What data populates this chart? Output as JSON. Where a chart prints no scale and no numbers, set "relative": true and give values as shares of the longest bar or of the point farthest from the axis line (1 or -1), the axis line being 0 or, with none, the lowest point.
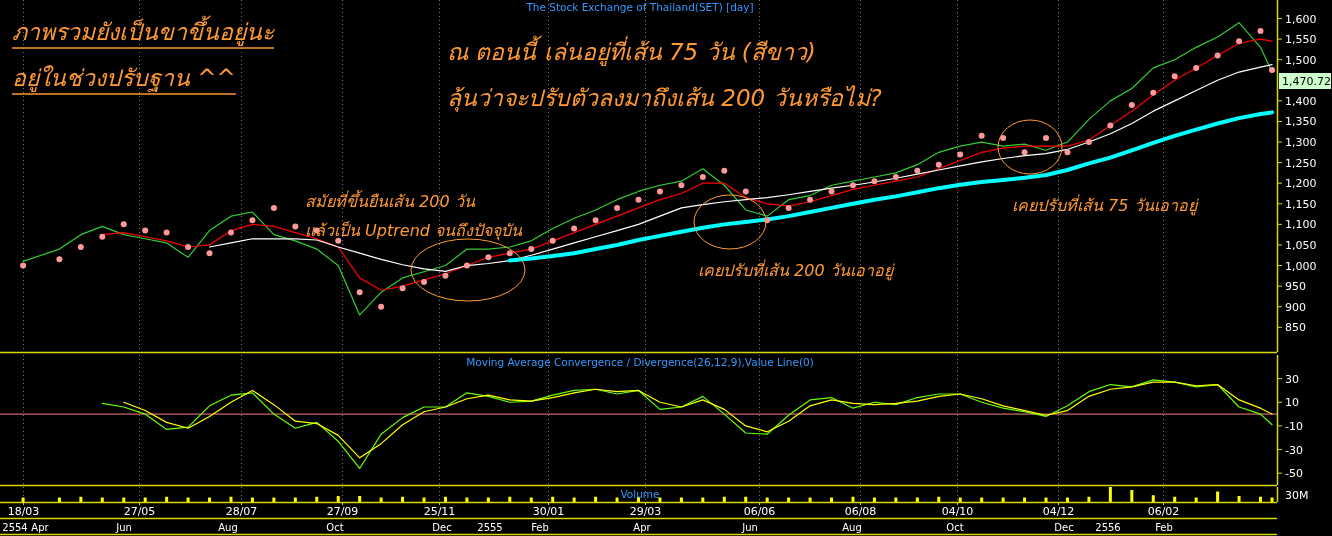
{
  "chart_data": [
    {
      "type": "line",
      "title": "The Stock Exchange of Thailand(SET) [day]",
      "grid": "x",
      "tick_labels": "y",
      "x": [
        "2011-03-18",
        "2011-04-09",
        "2011-04-22",
        "2011-05-05",
        "2011-05-18",
        "2011-05-31",
        "2011-06-13",
        "2011-06-26",
        "2011-07-09",
        "2011-07-22",
        "2011-08-04",
        "2011-08-17",
        "2011-08-30",
        "2011-09-12",
        "2011-09-25",
        "2011-10-08",
        "2011-10-21",
        "2011-11-03",
        "2011-11-16",
        "2011-11-29",
        "2011-12-12",
        "2011-12-25",
        "2012-01-07",
        "2012-01-20",
        "2012-02-02",
        "2012-02-15",
        "2012-02-28",
        "2012-03-12",
        "2012-03-25",
        "2012-04-07",
        "2012-04-20",
        "2012-05-03",
        "2012-05-16",
        "2012-05-29",
        "2012-06-11",
        "2012-06-24",
        "2012-07-07",
        "2012-07-20",
        "2012-08-02",
        "2012-08-15",
        "2012-08-28",
        "2012-09-10",
        "2012-09-23",
        "2012-10-06",
        "2012-10-19",
        "2012-11-01",
        "2012-11-14",
        "2012-11-27",
        "2012-12-10",
        "2012-12-23",
        "2013-01-05",
        "2013-01-18",
        "2013-01-31",
        "2013-02-13",
        "2013-02-26",
        "2013-03-11",
        "2013-03-24",
        "2013-04-06",
        "2013-04-13"
      ],
      "xlim": [
        "2011-03-04",
        "2013-04-16"
      ],
      "xticks": [
        {
          "value": "2011-03-18",
          "label": null
        },
        {
          "value": "2011-05-27",
          "label": null
        },
        {
          "value": "2011-07-28",
          "label": null
        },
        {
          "value": "2011-09-27",
          "label": null
        },
        {
          "value": "2011-11-25",
          "label": null
        },
        {
          "value": "2012-01-30",
          "label": null
        },
        {
          "value": "2012-03-29",
          "label": null
        },
        {
          "value": "2012-06-06",
          "label": null
        },
        {
          "value": "2012-08-06",
          "label": null
        },
        {
          "value": "2012-10-04",
          "label": null
        },
        {
          "value": "2012-12-04",
          "label": null
        },
        {
          "value": "2013-02-06",
          "label": null
        }
      ],
      "ylim": [
        790,
        1645
      ],
      "yticks": [
        {
          "value": 1600,
          "label": "1,600"
        },
        {
          "value": 1550,
          "label": "1,550"
        },
        {
          "value": 1500,
          "label": "1,500"
        },
        {
          "value": 1400,
          "label": "1,400"
        },
        {
          "value": 1350,
          "label": "1,350"
        },
        {
          "value": 1300,
          "label": "1,300"
        },
        {
          "value": 1250,
          "label": "1,250"
        },
        {
          "value": 1200,
          "label": "1,200"
        },
        {
          "value": 1150,
          "label": "1,150"
        },
        {
          "value": 1100,
          "label": "1,100"
        },
        {
          "value": 1050,
          "label": "1,050"
        },
        {
          "value": 1000,
          "label": "1,000"
        },
        950,
        900,
        850
      ],
      "series": [
        {
          "color": "#33cc33",
          "values": [
            1010,
            1040,
            1075,
            1095,
            1075,
            1065,
            1055,
            1020,
            1085,
            1120,
            1130,
            1075,
            1060,
            1040,
            1000,
            880,
            935,
            970,
            985,
            1000,
            1040,
            1040,
            1045,
            1060,
            1090,
            1115,
            1135,
            1160,
            1180,
            1195,
            1205,
            1235,
            1195,
            1135,
            1120,
            1160,
            1170,
            1195,
            1205,
            1215,
            1225,
            1245,
            1275,
            1290,
            1300,
            1290,
            1295,
            1280,
            1300,
            1355,
            1400,
            1430,
            1480,
            1500,
            1530,
            1555,
            1590,
            1530,
            1470
          ]
        },
        {
          "color": "#ff0000",
          "values": [
            null,
            null,
            null,
            1075,
            1080,
            1070,
            1060,
            1045,
            1050,
            1085,
            1100,
            1095,
            1080,
            1065,
            1045,
            970,
            940,
            950,
            965,
            980,
            1000,
            1020,
            1030,
            1040,
            1060,
            1080,
            1100,
            1120,
            1140,
            1160,
            1175,
            1200,
            1200,
            1165,
            1150,
            1145,
            1155,
            1170,
            1185,
            1195,
            1205,
            1215,
            1235,
            1255,
            1275,
            1285,
            1290,
            1290,
            1290,
            1305,
            1340,
            1375,
            1415,
            1450,
            1480,
            1510,
            1540,
            1550,
            1545
          ]
        },
        {
          "color": "#ffffff",
          "values": [
            null,
            null,
            null,
            null,
            null,
            null,
            null,
            null,
            1045,
            1055,
            1065,
            1065,
            1065,
            1062,
            1045,
            1030,
            1015,
            1002,
            992,
            986,
            1000,
            1005,
            1012,
            1025,
            1040,
            1055,
            1070,
            1085,
            1100,
            1120,
            1140,
            1148,
            1155,
            1160,
            1165,
            1172,
            1180,
            1188,
            1195,
            1203,
            1212,
            1222,
            1232,
            1242,
            1252,
            1260,
            1267,
            1272,
            1282,
            1300,
            1320,
            1345,
            1375,
            1400,
            1425,
            1450,
            1470,
            1482,
            1488
          ]
        },
        {
          "color": "#00ffff",
          "values": [
            null,
            null,
            null,
            null,
            null,
            null,
            null,
            null,
            null,
            null,
            null,
            null,
            null,
            null,
            null,
            null,
            null,
            null,
            null,
            null,
            null,
            null,
            1012,
            1017,
            1023,
            1030,
            1040,
            1050,
            1062,
            1072,
            1082,
            1092,
            1100,
            1106,
            1112,
            1120,
            1130,
            1140,
            1150,
            1160,
            1168,
            1178,
            1188,
            1196,
            1203,
            1208,
            1213,
            1220,
            1232,
            1248,
            1262,
            1280,
            1298,
            1315,
            1330,
            1345,
            1358,
            1368,
            1372
          ]
        },
        {
          "type": "scatter",
          "marker": "circle",
          "color": "#ff9999",
          "values": [
            1000,
            1015,
            1045,
            1070,
            1100,
            1085,
            1080,
            1045,
            1030,
            1080,
            1110,
            1140,
            1095,
            1085,
            1060,
            935,
            900,
            945,
            960,
            975,
            1000,
            1020,
            1030,
            1040,
            1060,
            1090,
            1110,
            1140,
            1160,
            1180,
            1195,
            1215,
            1230,
            1180,
            1110,
            1140,
            1160,
            1180,
            1195,
            1205,
            1215,
            1230,
            1245,
            1270,
            1315,
            1310,
            1275,
            1310,
            1275,
            1300,
            1340,
            1390,
            1420,
            1460,
            1480,
            1510,
            1545,
            1570,
            1475
          ]
        }
      ],
      "annotations": [
        "ภาพรวมยังเป็นขาขึ้นอยู่นะ",
        "อยู่ในช่วงปรับฐาน ^^",
        "ณ ตอนนี้ เล่นอยู่ที่เส้น 75 วัน (สีขาว)",
        "ลุ้นว่าจะปรับตัวลงมาถึงเส้น 200 วันหรือไม่?",
        "สมัยที่ขึ้นยืนเส้น 200 วัน",
        "แล้วเป็น Uptrend จนถึงปัจจุบัน",
        "เคยปรับที่เส้น 200 วันเอาอยู่",
        "เคยปรับที่เส้น 75 วันเอาอยู่",
        "1,470.72"
      ]
    },
    {
      "type": "line",
      "title": "Moving Average Convergence / Divergence(26,12,9),Value Line(0)",
      "grid": "x",
      "tick_labels": "y",
      "x": [
        "2011-05-05",
        "2011-05-18",
        "2011-05-31",
        "2011-06-13",
        "2011-06-26",
        "2011-07-09",
        "2011-07-22",
        "2011-08-04",
        "2011-08-17",
        "2011-08-30",
        "2011-09-12",
        "2011-09-25",
        "2011-10-08",
        "2011-10-21",
        "2011-11-03",
        "2011-11-16",
        "2011-11-29",
        "2011-12-12",
        "2011-12-25",
        "2012-01-07",
        "2012-01-20",
        "2012-02-02",
        "2012-02-15",
        "2012-02-28",
        "2012-03-12",
        "2012-03-25",
        "2012-04-07",
        "2012-04-20",
        "2012-05-03",
        "2012-05-16",
        "2012-05-29",
        "2012-06-11",
        "2012-06-24",
        "2012-07-07",
        "2012-07-20",
        "2012-08-02",
        "2012-08-15",
        "2012-08-28",
        "2012-09-10",
        "2012-09-23",
        "2012-10-06",
        "2012-10-19",
        "2012-11-01",
        "2012-11-14",
        "2012-11-27",
        "2012-12-10",
        "2012-12-23",
        "2013-01-05",
        "2013-01-18",
        "2013-01-31",
        "2013-02-13",
        "2013-02-26",
        "2013-03-11",
        "2013-03-24",
        "2013-04-06",
        "2013-04-13"
      ],
      "xlim": [
        "2011-03-04",
        "2013-04-16"
      ],
      "xticks": [
        {
          "value": "2011-03-18",
          "label": null
        },
        {
          "value": "2011-05-27",
          "label": null
        },
        {
          "value": "2011-07-28",
          "label": null
        },
        {
          "value": "2011-09-27",
          "label": null
        },
        {
          "value": "2011-11-25",
          "label": null
        },
        {
          "value": "2012-01-30",
          "label": null
        },
        {
          "value": "2012-03-29",
          "label": null
        },
        {
          "value": "2012-06-06",
          "label": null
        },
        {
          "value": "2012-08-06",
          "label": null
        },
        {
          "value": "2012-10-04",
          "label": null
        },
        {
          "value": "2012-12-04",
          "label": null
        },
        {
          "value": "2013-02-06",
          "label": null
        }
      ],
      "ylim": [
        -60,
        50
      ],
      "yticks": [
        30,
        10,
        -10,
        -30,
        -50
      ],
      "ref_lines": [
        {
          "axis": "y",
          "value": 0,
          "color": "#ff8080"
        }
      ],
      "series": [
        {
          "color": "#66ff00",
          "values": [
            9,
            6,
            0,
            -13,
            -11,
            7,
            16,
            18,
            0,
            -12,
            -7,
            -23,
            -46,
            -17,
            -3,
            6,
            6,
            18,
            15,
            10,
            11,
            16,
            20,
            21,
            17,
            20,
            4,
            6,
            15,
            0,
            -16,
            -17,
            -1,
            12,
            14,
            5,
            10,
            8,
            14,
            17,
            17,
            10,
            5,
            2,
            -2,
            7,
            19,
            25,
            23,
            29,
            27,
            23,
            25,
            6,
            0,
            -9
          ]
        },
        {
          "color": "#ffff00",
          "values": [
            null,
            10,
            3,
            -7,
            -12,
            -2,
            10,
            20,
            8,
            -6,
            -8,
            -18,
            -37,
            -25,
            -9,
            2,
            6,
            13,
            16,
            12,
            11,
            14,
            18,
            21,
            19,
            20,
            10,
            6,
            12,
            4,
            -10,
            -15,
            -6,
            7,
            12,
            9,
            8,
            9,
            11,
            15,
            17,
            13,
            7,
            3,
            -1,
            3,
            15,
            21,
            23,
            27,
            27,
            24,
            25,
            12,
            5,
            0
          ]
        }
      ]
    },
    {
      "type": "bar",
      "title": "Volume",
      "relative": true,
      "grid": "x",
      "tick_labels": "x",
      "x": [
        "2011-03-18",
        "2011-04-09",
        "2011-04-22",
        "2011-05-05",
        "2011-05-18",
        "2011-05-31",
        "2011-06-13",
        "2011-06-26",
        "2011-07-09",
        "2011-07-22",
        "2011-08-04",
        "2011-08-17",
        "2011-08-30",
        "2011-09-12",
        "2011-09-25",
        "2011-10-08",
        "2011-10-21",
        "2011-11-03",
        "2011-11-16",
        "2011-11-29",
        "2011-12-12",
        "2011-12-25",
        "2012-01-07",
        "2012-01-20",
        "2012-02-02",
        "2012-02-15",
        "2012-02-28",
        "2012-03-12",
        "2012-03-25",
        "2012-04-07",
        "2012-04-20",
        "2012-05-03",
        "2012-05-16",
        "2012-05-29",
        "2012-06-11",
        "2012-06-24",
        "2012-07-07",
        "2012-07-20",
        "2012-08-02",
        "2012-08-15",
        "2012-08-28",
        "2012-09-10",
        "2012-09-23",
        "2012-10-06",
        "2012-10-19",
        "2012-11-01",
        "2012-11-14",
        "2012-11-27",
        "2012-12-10",
        "2012-12-23",
        "2013-01-05",
        "2013-01-18",
        "2013-01-31",
        "2013-02-13",
        "2013-02-26",
        "2013-03-11",
        "2013-03-24",
        "2013-04-06",
        "2013-04-13"
      ],
      "xlim": [
        "2011-03-04",
        "2013-04-16"
      ],
      "xticks": [
        {
          "value": "2011-03-18",
          "label": "18/03"
        },
        {
          "value": "2011-05-27",
          "label": "27/05"
        },
        {
          "value": "2011-07-28",
          "label": "28/07"
        },
        {
          "value": "2011-09-27",
          "label": "27/09"
        },
        {
          "value": "2011-11-25",
          "label": "25/11"
        },
        {
          "value": "2012-01-30",
          "label": "30/01"
        },
        {
          "value": "2012-03-29",
          "label": "29/03"
        },
        {
          "value": "2012-06-06",
          "label": "06/06"
        },
        {
          "value": "2012-08-06",
          "label": "06/08"
        },
        {
          "value": "2012-10-04",
          "label": "04/10"
        },
        {
          "value": "2012-12-04",
          "label": "04/12"
        },
        {
          "value": "2013-02-06",
          "label": "06/02"
        }
      ],
      "color": "#ffff00",
      "values": [
        0.3,
        0.3,
        0.35,
        0.3,
        0.3,
        0.3,
        0.35,
        0.3,
        0.3,
        0.35,
        0.3,
        0.3,
        0.3,
        0.35,
        0.4,
        0.4,
        0.3,
        0.35,
        0.3,
        0.35,
        0.3,
        0.3,
        0.35,
        0.3,
        0.35,
        0.3,
        0.35,
        0.3,
        0.35,
        0.3,
        0.3,
        0.3,
        0.35,
        0.35,
        0.3,
        0.3,
        0.3,
        0.3,
        0.35,
        0.3,
        0.3,
        0.3,
        0.35,
        0.3,
        0.3,
        0.3,
        0.3,
        0.3,
        0.3,
        0.35,
        1,
        0.8,
        0.45,
        0.35,
        0.3,
        0.7,
        0.4,
        0.35,
        0.3
      ],
      "annotations": [
        "30M",
        "2554",
        "Apr",
        "Jun",
        "Aug",
        "Oct",
        "Dec",
        "2555",
        "Feb",
        "Apr",
        "Jun",
        "Aug",
        "Oct",
        "Dec",
        "2556",
        "Feb"
      ]
    }
  ]
}
